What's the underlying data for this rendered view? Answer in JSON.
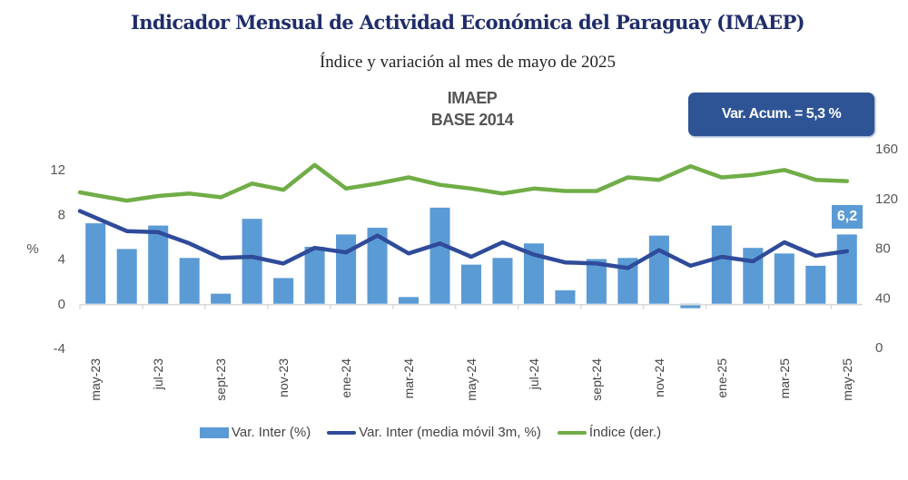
{
  "header": {
    "title": "Indicador Mensual de Actividad Económica del Paraguay (IMAEP)",
    "subtitle": "Índice y variación al mes de mayo de 2025"
  },
  "badge": {
    "text": "Var. Acum. =  5,3 %"
  },
  "colors": {
    "bars": "#5b9bd5",
    "moving_avg": "#2f4b9a",
    "index": "#70ad47",
    "title": "#1f2d6b",
    "badge": "#2f5496"
  },
  "chart_data": {
    "type": "bar",
    "title": "IMAEP",
    "subtitle": "BASE 2014",
    "ylabel": "%",
    "ylim": [
      -4,
      12
    ],
    "yticks": [
      "12",
      "8",
      "4",
      "0",
      "-4"
    ],
    "ytick_values": [
      12,
      8,
      4,
      0,
      -4
    ],
    "y2lim": [
      0,
      160
    ],
    "y2ticks": [
      "160",
      "120",
      "80",
      "40",
      "0"
    ],
    "y2tick_values": [
      160,
      120,
      80,
      40,
      0
    ],
    "x": [
      "may-23",
      "jun-23",
      "jul-23",
      "ago-23",
      "sept-23",
      "oct-23",
      "nov-23",
      "dic-23",
      "ene-24",
      "feb-24",
      "mar-24",
      "abr-24",
      "may-24",
      "jun-24",
      "jul-24",
      "ago-24",
      "sept-24",
      "oct-24",
      "nov-24",
      "dic-24",
      "ene-25",
      "feb-25",
      "mar-25",
      "abr-25",
      "may-25"
    ],
    "xtick_labels": [
      "may-23",
      "jul-23",
      "sept-23",
      "nov-23",
      "ene-24",
      "mar-24",
      "may-24",
      "jul-24",
      "sept-24",
      "nov-24",
      "ene-25",
      "mar-25",
      "may-25"
    ],
    "series": [
      {
        "name": "Var. Inter (%)",
        "type": "bar",
        "axis": "left",
        "values": [
          7.2,
          4.9,
          7.0,
          4.1,
          0.9,
          7.6,
          2.3,
          5.1,
          6.2,
          6.8,
          0.6,
          8.6,
          3.5,
          4.1,
          5.4,
          1.2,
          4.0,
          4.1,
          6.1,
          -0.4,
          7.0,
          5.0,
          4.5,
          3.4,
          6.2
        ]
      },
      {
        "name": "Var. Inter (media móvil 3m, %)",
        "type": "line",
        "axis": "left",
        "values": [
          7.7,
          6.5,
          6.4,
          5.4,
          4.1,
          4.2,
          3.6,
          5.0,
          4.6,
          6.1,
          4.5,
          5.4,
          4.2,
          5.5,
          4.4,
          3.7,
          3.6,
          3.2,
          4.8,
          3.4,
          4.2,
          3.8,
          5.5,
          4.3,
          4.7
        ]
      },
      {
        "name": "Índice (der.)",
        "type": "line",
        "axis": "right",
        "values": [
          122.7,
          118.3,
          122,
          124,
          121,
          132,
          127,
          147,
          128,
          132,
          137,
          131,
          128,
          124,
          128,
          126,
          126,
          137,
          135,
          146,
          137,
          139,
          143,
          135,
          134
        ]
      }
    ],
    "data_labels": [
      {
        "category": "may-25",
        "series": "Var. Inter (%)",
        "text": "6,2"
      }
    ],
    "legend": {
      "position": "bottom",
      "entries": [
        "Var. Inter (%)",
        "Var. Inter (media móvil 3m, %)",
        "Índice (der.)"
      ]
    },
    "grid": false
  }
}
